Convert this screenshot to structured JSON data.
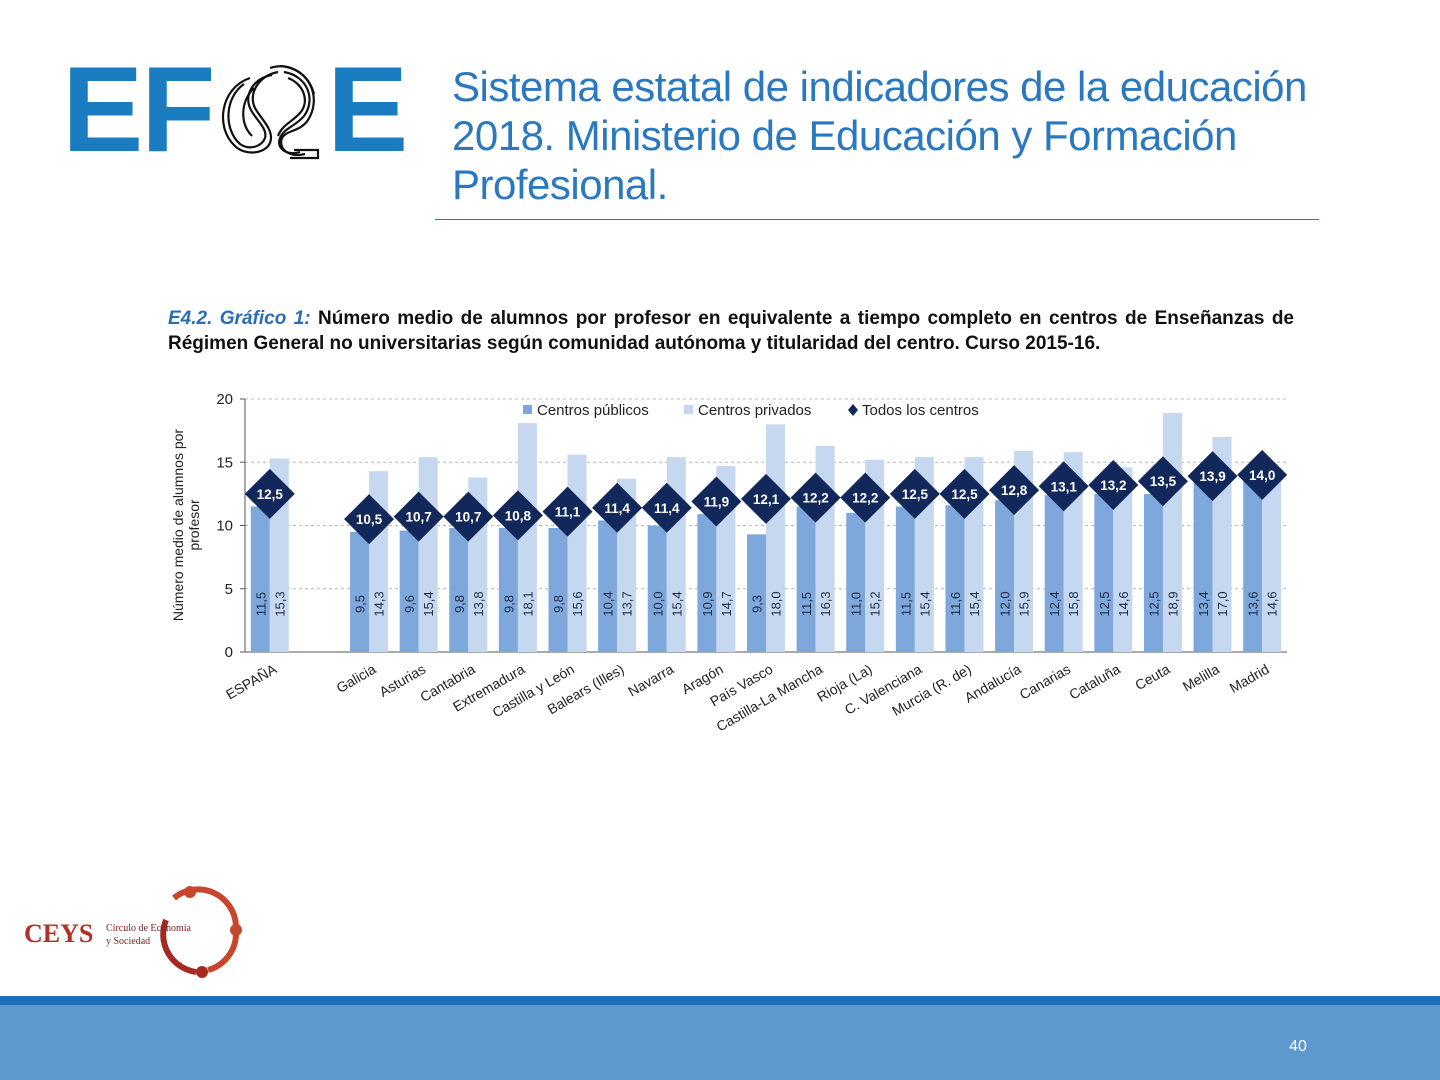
{
  "header": {
    "logo_text": "EFE",
    "title": "Sistema estatal de indicadores de la educación 2018. Ministerio de Educación y Formación Profesional."
  },
  "caption": {
    "label": "E4.2. Gráfico 1:",
    "text": "Número medio de alumnos por profesor en equivalente a tiempo completo en centros de Enseñanzas de Régimen General no universitarias según comunidad autónoma y titularidad del centro. Curso 2015-16."
  },
  "chart_data": {
    "type": "bar",
    "ylabel": "Número medio de alumnos por profesor",
    "ylim": [
      0,
      20
    ],
    "yticks": [
      0,
      5,
      10,
      15,
      20
    ],
    "grid": true,
    "legend_position": "top",
    "categories": [
      "ESPAÑA",
      "",
      "Galicia",
      "Asturias",
      "Cantabria",
      "Extremadura",
      "Castilla y León",
      "Balears (Illes)",
      "Navarra",
      "Aragón",
      "País Vasco",
      "Castilla-La Mancha",
      "Rioja (La)",
      "C. Valenciana",
      "Murcia (R. de)",
      "Andalucía",
      "Canarias",
      "Cataluña",
      "Ceuta",
      "Melilla",
      "Madrid"
    ],
    "series": [
      {
        "name": "Centros públicos",
        "kind": "bar",
        "color": "#7ea7db",
        "values": [
          11.5,
          null,
          9.5,
          9.6,
          9.8,
          9.8,
          9.8,
          10.4,
          10.0,
          10.9,
          9.3,
          11.5,
          11.0,
          11.5,
          11.6,
          12.0,
          12.4,
          12.5,
          12.5,
          13.4,
          13.6
        ],
        "labels": [
          "11,5",
          "",
          "9,5",
          "9,6",
          "9,8",
          "9,8",
          "9,8",
          "10,4",
          "10,0",
          "10,9",
          "9,3",
          "11,5",
          "11,0",
          "11,5",
          "11,6",
          "12,0",
          "12,4",
          "12,5",
          "12,5",
          "13,4",
          "13,6"
        ]
      },
      {
        "name": "Centros privados",
        "kind": "bar",
        "color": "#c6d8f0",
        "values": [
          15.3,
          null,
          14.3,
          15.4,
          13.8,
          18.1,
          15.6,
          13.7,
          15.4,
          14.7,
          18.0,
          16.3,
          15.2,
          15.4,
          15.4,
          15.9,
          15.8,
          14.6,
          18.9,
          17.0,
          14.6
        ],
        "labels": [
          "15,3",
          "",
          "14,3",
          "15,4",
          "13,8",
          "18,1",
          "15,6",
          "13,7",
          "15,4",
          "14,7",
          "18,0",
          "16,3",
          "15,2",
          "15,4",
          "15,4",
          "15,9",
          "15,8",
          "14,6",
          "18,9",
          "17,0",
          "14,6"
        ]
      },
      {
        "name": "Todos los centros",
        "kind": "marker",
        "color": "#13285a",
        "values": [
          12.5,
          null,
          10.5,
          10.7,
          10.7,
          10.8,
          11.1,
          11.4,
          11.4,
          11.9,
          12.1,
          12.2,
          12.2,
          12.5,
          12.5,
          12.8,
          13.1,
          13.2,
          13.5,
          13.9,
          14.0
        ],
        "labels": [
          "12,5",
          "",
          "10,5",
          "10,7",
          "10,7",
          "10,8",
          "11,1",
          "11,4",
          "11,4",
          "11,9",
          "12,1",
          "12,2",
          "12,2",
          "12,5",
          "12,5",
          "12,8",
          "13,1",
          "13,2",
          "13,5",
          "13,9",
          "14,0"
        ]
      }
    ]
  },
  "footer": {
    "org_short": "CEYS",
    "org_line1": "Círculo de Economía",
    "org_line2": "y Sociedad",
    "page_number": "40"
  }
}
